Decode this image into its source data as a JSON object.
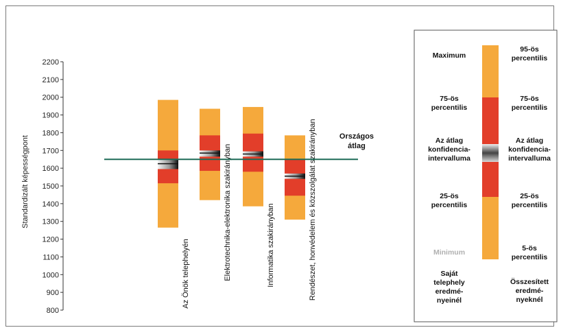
{
  "chart_data": {
    "type": "box",
    "ylabel": "Standardizált képességpont",
    "ylim": [
      800,
      2200
    ],
    "yticks": [
      800,
      900,
      1000,
      1100,
      1200,
      1300,
      1400,
      1500,
      1600,
      1700,
      1800,
      1900,
      2000,
      2100,
      2200
    ],
    "national_average": {
      "label_line1": "Országos",
      "label_line2": "átlag",
      "value": 1650
    },
    "categories": [
      {
        "name": "Az Önök telephelyén",
        "min": 1265,
        "p25": 1515,
        "ci_low": 1595,
        "mean": 1625,
        "ci_high": 1650,
        "p75": 1700,
        "max": 1985
      },
      {
        "name": "Elektrotechnika-elektronika szakirányban",
        "min": 1420,
        "p25": 1585,
        "ci_low": 1665,
        "mean": 1685,
        "ci_high": 1700,
        "p75": 1785,
        "max": 1935
      },
      {
        "name": "Informatika szakirányban",
        "min": 1385,
        "p25": 1580,
        "ci_low": 1665,
        "mean": 1680,
        "ci_high": 1695,
        "p75": 1795,
        "max": 1945
      },
      {
        "name": "Rendészet, honvédelem és közszolgálat szakirányban",
        "min": 1310,
        "p25": 1445,
        "ci_low": 1540,
        "mean": 1555,
        "ci_high": 1570,
        "p75": 1650,
        "max": 1785
      }
    ],
    "colors": {
      "outer": "#f5a93c",
      "inner": "#e23e2a",
      "ci_light": "#f4f4f4",
      "ci_dark": "#1a1a1a",
      "average_line": "#1d6b57"
    },
    "legend": {
      "left": [
        "Maximum",
        "75-ös percentilis",
        "Az átlag konfidencia-intervalluma",
        "25-ös percentilis",
        "Minimum",
        "Saját telephely eredmé-nyeinél"
      ],
      "right": [
        "95-ös percentilis",
        "75-ös percentilis",
        "Az átlag konfidencia-intervalluma",
        "25-ös percentilis",
        "5-ös percentilis",
        "Összesített eredmé-nyeknél"
      ]
    }
  }
}
